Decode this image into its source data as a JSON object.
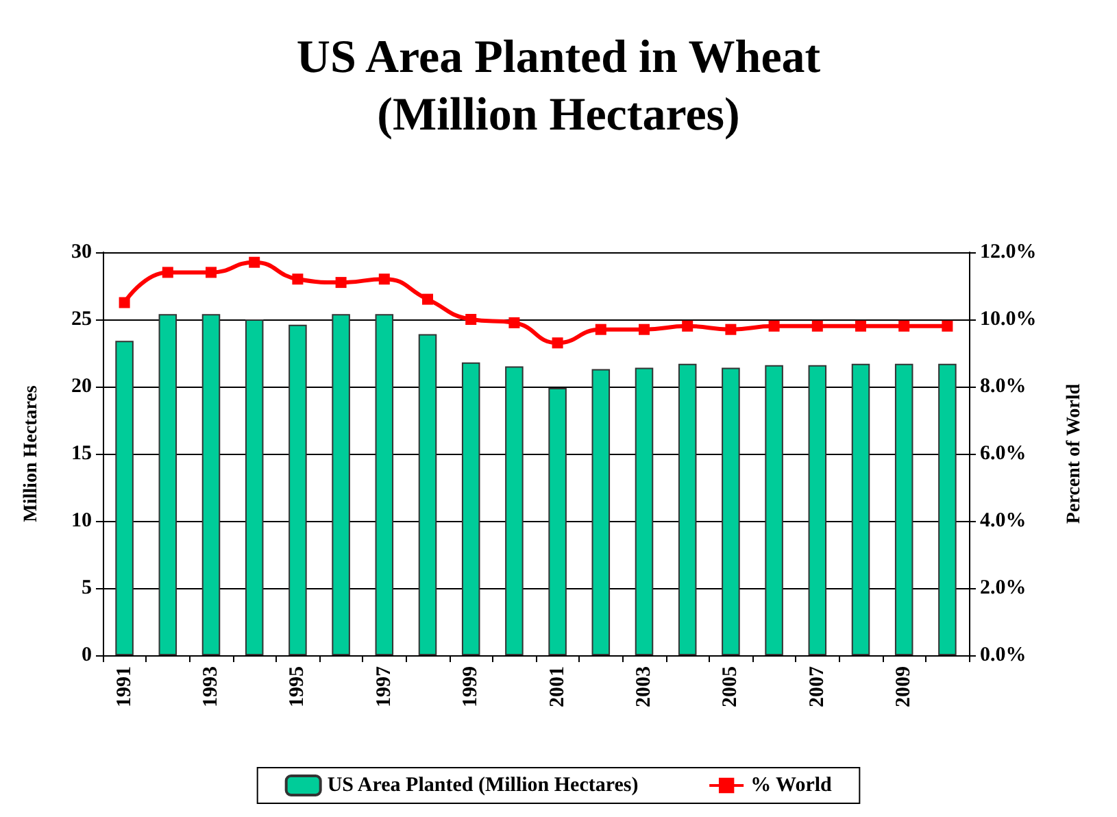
{
  "chart_data": {
    "type": "bar",
    "title": "US Area Planted in Wheat\n(Million Hectares)",
    "ylabel": "Million Hectares",
    "y2label": "Percent of World",
    "categories": [
      "1991",
      null,
      "1993",
      null,
      "1995",
      null,
      "1997",
      null,
      "1999",
      null,
      "2001",
      null,
      "2003",
      null,
      "2005",
      null,
      "2007",
      null,
      "2009",
      null
    ],
    "series": [
      {
        "name": "US Area Planted (Million Hectares)",
        "color": "#00cc99",
        "values": [
          23.4,
          25.4,
          25.4,
          25.0,
          24.6,
          25.4,
          25.4,
          23.9,
          21.8,
          21.5,
          19.9,
          21.3,
          21.4,
          21.7,
          21.4,
          21.6,
          21.6,
          21.7,
          21.7,
          21.7
        ]
      },
      {
        "name": "% World",
        "type": "line",
        "axis": "y2",
        "color": "#ff0000",
        "marker": "square",
        "values": [
          10.5,
          11.4,
          11.4,
          11.7,
          11.2,
          11.1,
          11.2,
          10.6,
          10.0,
          9.9,
          9.3,
          9.7,
          9.7,
          9.8,
          9.7,
          9.8,
          9.8,
          9.8,
          9.8,
          9.8
        ]
      }
    ],
    "ylim": [
      0,
      30
    ],
    "yticks": [
      0,
      5,
      10,
      15,
      20,
      25,
      30
    ],
    "y2lim": [
      0,
      12
    ],
    "y2ticks": [
      {
        "value": 0,
        "label": "0.0%"
      },
      {
        "value": 2,
        "label": "2.0%"
      },
      {
        "value": 4,
        "label": "4.0%"
      },
      {
        "value": 6,
        "label": "6.0%"
      },
      {
        "value": 8,
        "label": "8.0%"
      },
      {
        "value": 10,
        "label": "10.0%"
      },
      {
        "value": 12,
        "label": "12.0%"
      }
    ],
    "grid": "y",
    "legend": "bottom"
  }
}
